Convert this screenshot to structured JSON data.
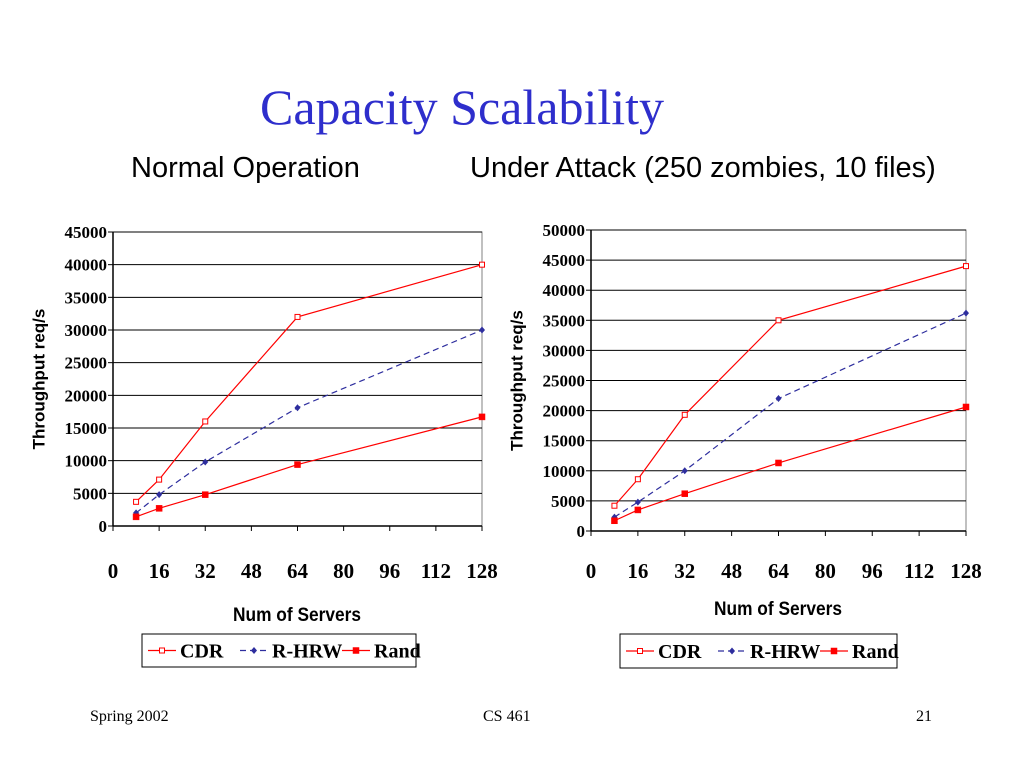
{
  "slide": {
    "title": "Capacity Scalability",
    "subtitle_left": "Normal Operation",
    "subtitle_right": "Under Attack (250 zombies, 10 files)",
    "footer_left": "Spring 2002",
    "footer_center": "CS 461",
    "footer_right": "21"
  },
  "chart_data": [
    {
      "type": "line",
      "title": "",
      "xlabel": "Num of Servers",
      "ylabel": "Throughput req/s",
      "xlim": [
        0,
        128
      ],
      "ylim": [
        0,
        45000
      ],
      "x_ticks": [
        0,
        16,
        32,
        48,
        64,
        80,
        96,
        112,
        128
      ],
      "y_ticks": [
        0,
        5000,
        10000,
        15000,
        20000,
        25000,
        30000,
        35000,
        40000,
        45000
      ],
      "grid": "horizontal",
      "legend_position": "bottom",
      "series": [
        {
          "name": "CDR",
          "x": [
            8,
            16,
            32,
            64,
            128
          ],
          "values": [
            3700,
            7100,
            16000,
            32000,
            40000
          ],
          "color": "#ff0000",
          "dash": "solid",
          "marker": "open-square"
        },
        {
          "name": "R-HRW",
          "x": [
            8,
            16,
            32,
            64,
            128
          ],
          "values": [
            2000,
            4800,
            9800,
            18100,
            30000
          ],
          "color": "#2e2e9e",
          "dash": "dashed",
          "marker": "diamond"
        },
        {
          "name": "Rand",
          "x": [
            8,
            16,
            32,
            64,
            128
          ],
          "values": [
            1400,
            2700,
            4800,
            9400,
            16700
          ],
          "color": "#ff0000",
          "dash": "solid",
          "marker": "filled-square"
        }
      ]
    },
    {
      "type": "line",
      "title": "",
      "xlabel": "Num of Servers",
      "ylabel": "Throughput req/s",
      "xlim": [
        0,
        128
      ],
      "ylim": [
        0,
        50000
      ],
      "x_ticks": [
        0,
        16,
        32,
        48,
        64,
        80,
        96,
        112,
        128
      ],
      "y_ticks": [
        0,
        5000,
        10000,
        15000,
        20000,
        25000,
        30000,
        35000,
        40000,
        45000,
        50000
      ],
      "grid": "horizontal",
      "legend_position": "bottom",
      "series": [
        {
          "name": "CDR",
          "x": [
            8,
            16,
            32,
            64,
            128
          ],
          "values": [
            4200,
            8600,
            19300,
            35000,
            44000
          ],
          "color": "#ff0000",
          "dash": "solid",
          "marker": "open-square"
        },
        {
          "name": "R-HRW",
          "x": [
            8,
            16,
            32,
            64,
            128
          ],
          "values": [
            2300,
            4800,
            10000,
            22000,
            36200
          ],
          "color": "#2e2e9e",
          "dash": "dashed",
          "marker": "diamond"
        },
        {
          "name": "Rand",
          "x": [
            8,
            16,
            32,
            64,
            128
          ],
          "values": [
            1700,
            3500,
            6200,
            11300,
            20600
          ],
          "color": "#ff0000",
          "dash": "solid",
          "marker": "filled-square"
        }
      ]
    }
  ]
}
